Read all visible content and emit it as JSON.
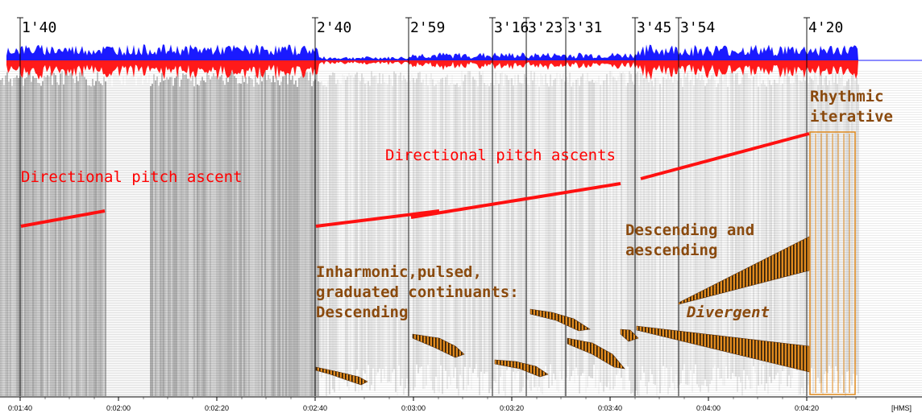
{
  "timestamp_labels": [
    "1'40",
    "2'40",
    "2'59",
    "3'16",
    "3'23",
    "3'31",
    "3'45",
    "3'54",
    "4'20"
  ],
  "axis_ticks": [
    "0:01:40",
    "0:02:00",
    "0:02:20",
    "0:02:40",
    "0:03:00",
    "0:03:20",
    "0:03:40",
    "0:04:00",
    "0:04:20"
  ],
  "axis_unit": "[HMS]",
  "annotations": {
    "directional_pitch_ascent": "Directional pitch ascent",
    "directional_pitch_ascents": "Directional pitch ascents",
    "rhythmic": "Rhythmic",
    "iterative": "iterative",
    "descending_and": "Descending and",
    "aescending": "aescending",
    "inharmonic_line1": "Inharmonic,pulsed,",
    "inharmonic_line2": "graduated continuants:",
    "inharmonic_line3": "Descending",
    "divergent": "Divergent"
  },
  "colors": {
    "waveform_top": "#1a1aff",
    "waveform_bottom": "#ff1a1a",
    "annotation_red": "#ff0000",
    "annotation_brown": "#8a4a0e",
    "shape_fill": "#e08a1e"
  }
}
